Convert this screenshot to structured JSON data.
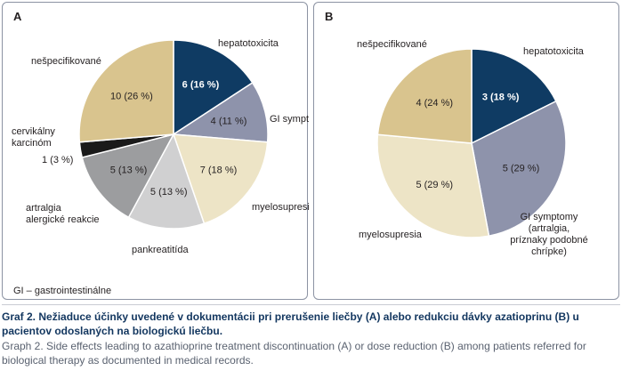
{
  "colors": {
    "hepatotoxicita": "#0f3b63",
    "gi_symptomy": "#8e93ab",
    "myelosupresia": "#ede4c6",
    "pankreatitida": "#d0d0d1",
    "artralgia": "#9c9d9f",
    "cervikalny": "#1a1a1a",
    "nespecifikovane": "#d9c48e"
  },
  "chart_data": [
    {
      "type": "pie",
      "panel": "A",
      "slices": [
        {
          "label": "hepatotoxicita",
          "count": 6,
          "percent": 16,
          "value_label": "6 (16 %)",
          "color_key": "hepatotoxicita"
        },
        {
          "label": "GI symptomy",
          "count": 4,
          "percent": 11,
          "value_label": "4 (11 %)",
          "color_key": "gi_symptomy"
        },
        {
          "label": "myelosupresia",
          "count": 7,
          "percent": 18,
          "value_label": "7 (18 %)",
          "color_key": "myelosupresia"
        },
        {
          "label": "pankreatitída",
          "count": 5,
          "percent": 13,
          "value_label": "5 (13 %)",
          "color_key": "pankreatitida"
        },
        {
          "label": "artralgia alergické reakcie",
          "count": 5,
          "percent": 13,
          "value_label": "5 (13 %)",
          "color_key": "artralgia"
        },
        {
          "label": "cervikálny karcinóm",
          "count": 1,
          "percent": 3,
          "value_label": "1 (3 %)",
          "color_key": "cervikalny"
        },
        {
          "label": "nešpecifikované",
          "count": 10,
          "percent": 26,
          "value_label": "10 (26 %)",
          "color_key": "nespecifikovane"
        }
      ]
    },
    {
      "type": "pie",
      "panel": "B",
      "slices": [
        {
          "label": "hepatotoxicita",
          "count": 3,
          "percent": 18,
          "value_label": "3 (18 %)",
          "color_key": "hepatotoxicita"
        },
        {
          "label": "GI symptomy (artralgia, príznaky podobné chrípke)",
          "count": 5,
          "percent": 29,
          "value_label": "5 (29 %)",
          "color_key": "gi_symptomy"
        },
        {
          "label": "myelosupresia",
          "count": 5,
          "percent": 29,
          "value_label": "5 (29 %)",
          "color_key": "myelosupresia"
        },
        {
          "label": "nešpecifikované",
          "count": 4,
          "percent": 24,
          "value_label": "4 (24 %)",
          "color_key": "nespecifikovane"
        }
      ]
    }
  ],
  "panel_a": {
    "letter": "A",
    "label_lines": {
      "hepatotoxicita": [
        "hepatotoxicita"
      ],
      "gi": [
        "GI symptomy"
      ],
      "myelo": [
        "myelosupresia"
      ],
      "pankrea": [
        "pankreatitída"
      ],
      "artralgia": [
        "artralgia",
        "alergické reakcie"
      ],
      "cervikalny": [
        "cervikálny",
        "karcinóm"
      ],
      "nespec": [
        "nešpecifikované"
      ]
    },
    "footnote": "GI – gastrointestinálne"
  },
  "panel_b": {
    "letter": "B",
    "label_lines": {
      "hepatotoxicita": [
        "hepatotoxicita"
      ],
      "gi": [
        "GI symptomy",
        "(artralgia,",
        "príznaky podobné",
        "chrípke)"
      ],
      "myelo": [
        "myelosupresia"
      ],
      "nespec": [
        "nešpecifikované"
      ]
    }
  },
  "caption": {
    "sk": "Graf 2. Nežiaduce účinky uvedené v dokumentácii pri prerušenie liečby (A) alebo redukciu dávky azatioprinu (B) u pacientov odoslaných na biologickú liečbu.",
    "en": "Graph 2. Side effects leading to azathioprine treatment discontinuation (A) or dose reduction (B) among patients referred for biological therapy as documented in medical records."
  }
}
